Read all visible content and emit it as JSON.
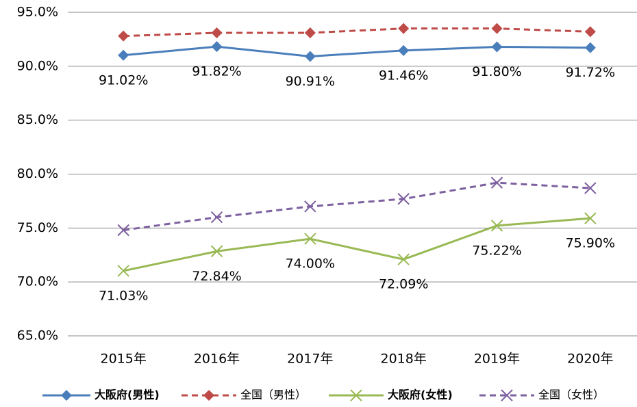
{
  "chart_data": {
    "type": "line",
    "categories": [
      "2015年",
      "2016年",
      "2017年",
      "2018年",
      "2019年",
      "2020年"
    ],
    "series": [
      {
        "name": "大阪府(男性)",
        "color": "#4a7ebb",
        "marker": "diamond",
        "dash": false,
        "values": [
          91.02,
          91.82,
          90.91,
          91.46,
          91.8,
          91.72
        ],
        "value_labels": [
          "91.02%",
          "91.82%",
          "90.91%",
          "91.46%",
          "91.80%",
          "91.72%"
        ]
      },
      {
        "name": "全国（男性）",
        "color": "#be4b48",
        "marker": "diamond",
        "dash": true,
        "values": [
          92.8,
          93.1,
          93.1,
          93.5,
          93.5,
          93.2
        ]
      },
      {
        "name": "大阪府(女性)",
        "color": "#98b954",
        "marker": "x",
        "dash": false,
        "values": [
          71.03,
          72.84,
          74.0,
          72.09,
          75.22,
          75.9
        ],
        "value_labels": [
          "71.03%",
          "72.84%",
          "74.00%",
          "72.09%",
          "75.22%",
          "75.90%"
        ]
      },
      {
        "name": "全国（女性）",
        "color": "#7d60a0",
        "marker": "x",
        "dash": true,
        "values": [
          74.8,
          76.0,
          77.0,
          77.7,
          79.2,
          78.7
        ]
      }
    ],
    "ylim": [
      65,
      95
    ],
    "yticks": [
      {
        "value": 65,
        "label": "65.0%"
      },
      {
        "value": 70,
        "label": "70.0%"
      },
      {
        "value": 75,
        "label": "75.0%"
      },
      {
        "value": 80,
        "label": "80.0%"
      },
      {
        "value": 85,
        "label": "85.0%"
      },
      {
        "value": 90,
        "label": "90.0%"
      },
      {
        "value": 95,
        "label": "95.0%"
      }
    ],
    "grid": true,
    "legend": "bottom"
  }
}
